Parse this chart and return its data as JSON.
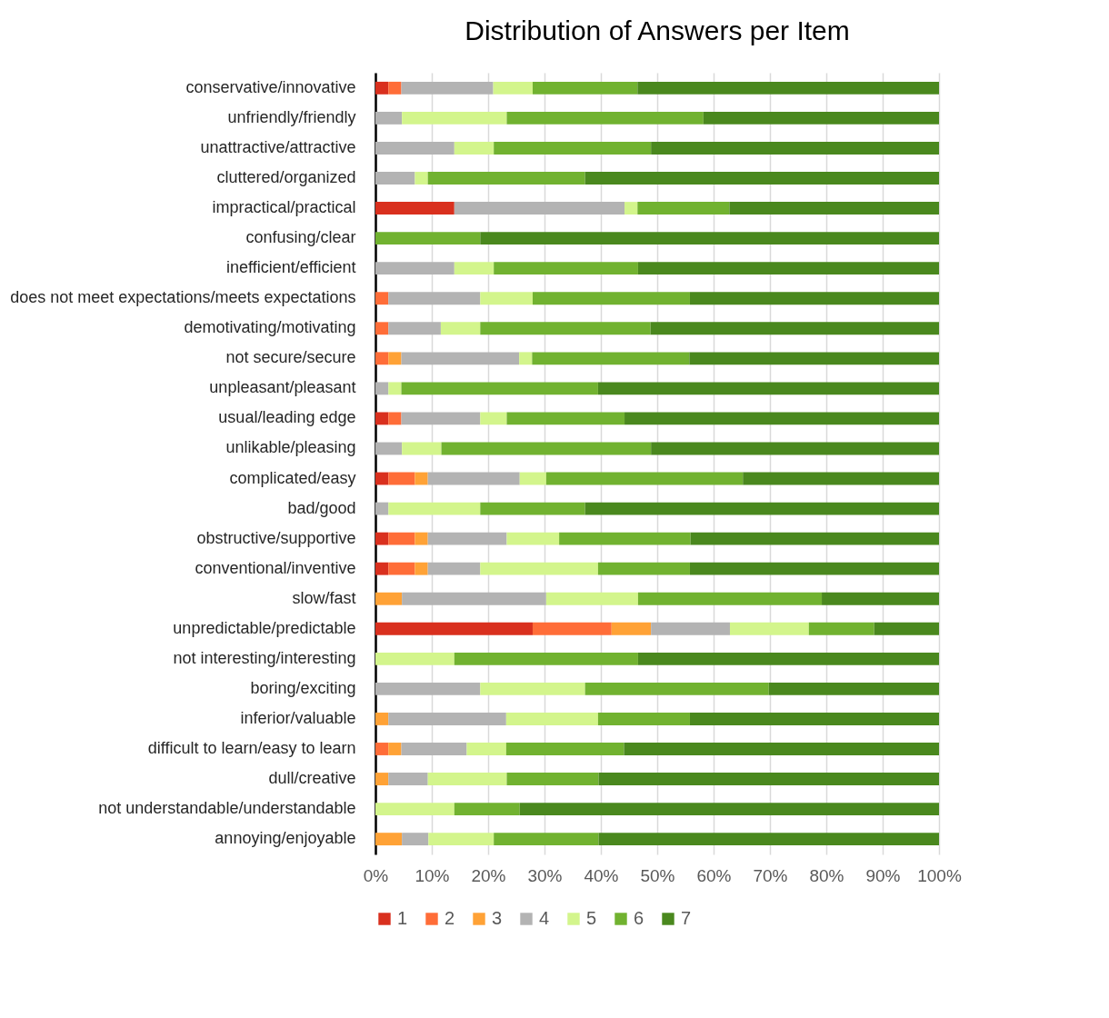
{
  "chart_data": {
    "type": "bar",
    "orientation": "horizontal",
    "stacked": true,
    "title": "Distribution of Answers per Item",
    "categories": [
      "conservative/innovative",
      "unfriendly/friendly",
      "unattractive/attractive",
      "cluttered/organized",
      "impractical/practical",
      "confusing/clear",
      "inefficient/efficient",
      "does not meet expectations/meets expectations",
      "demotivating/motivating",
      "not secure/secure",
      "unpleasant/pleasant",
      "usual/leading edge",
      "unlikable/pleasing",
      "complicated/easy",
      "bad/good",
      "obstructive/supportive",
      "conventional/inventive",
      "slow/fast",
      "unpredictable/predictable",
      "not interesting/interesting",
      "boring/exciting",
      "inferior/valuable",
      "difficult to learn/easy to learn",
      "dull/creative",
      "not understandable/understandable",
      "annoying/enjoyable"
    ],
    "series": [
      {
        "name": "1",
        "color": "#d9301e",
        "values": [
          2.3,
          0,
          0,
          0,
          14.0,
          0,
          0,
          0,
          0,
          0,
          0,
          2.3,
          0,
          2.3,
          0,
          2.3,
          2.3,
          0,
          27.9,
          0,
          0,
          0,
          0,
          0,
          0,
          0
        ]
      },
      {
        "name": "2",
        "color": "#ff6d38",
        "values": [
          2.3,
          0,
          0,
          0,
          0,
          0,
          0,
          2.3,
          2.3,
          2.3,
          0,
          2.3,
          0,
          4.7,
          0,
          4.7,
          4.7,
          0,
          14.0,
          0,
          0,
          0,
          2.3,
          0,
          0,
          0
        ]
      },
      {
        "name": "3",
        "color": "#ffa236",
        "values": [
          0,
          0,
          0,
          0,
          0,
          0,
          0,
          0,
          0,
          2.3,
          0,
          0,
          0,
          2.3,
          0,
          2.3,
          2.3,
          4.7,
          7.0,
          0,
          0,
          2.3,
          2.3,
          2.3,
          0,
          4.7
        ]
      },
      {
        "name": "4",
        "color": "#b3b3b3",
        "values": [
          16.3,
          4.7,
          14.0,
          7.0,
          30.2,
          0,
          14.0,
          16.3,
          9.3,
          20.9,
          2.3,
          14.0,
          4.7,
          16.3,
          2.3,
          14.0,
          9.3,
          25.6,
          14.0,
          0,
          18.6,
          20.9,
          11.6,
          7.0,
          0,
          4.7
        ]
      },
      {
        "name": "5",
        "color": "#d3f58c",
        "values": [
          7.0,
          18.6,
          7.0,
          2.3,
          2.3,
          0,
          7.0,
          9.3,
          7.0,
          2.3,
          2.3,
          4.7,
          7.0,
          4.7,
          16.3,
          9.3,
          20.9,
          16.3,
          14.0,
          14.0,
          18.6,
          16.3,
          7.0,
          14.0,
          14.0,
          11.6
        ]
      },
      {
        "name": "6",
        "color": "#71b230",
        "values": [
          18.6,
          34.9,
          27.9,
          27.9,
          16.3,
          18.6,
          25.6,
          27.9,
          30.2,
          27.9,
          34.9,
          20.9,
          37.2,
          34.9,
          18.6,
          23.3,
          16.3,
          32.6,
          11.6,
          32.6,
          32.6,
          16.3,
          20.9,
          16.3,
          11.6,
          18.6
        ]
      },
      {
        "name": "7",
        "color": "#4a881e",
        "values": [
          53.5,
          41.8,
          51.1,
          62.8,
          37.2,
          81.4,
          53.4,
          44.2,
          51.2,
          44.3,
          60.5,
          55.8,
          51.1,
          34.8,
          62.8,
          44.1,
          44.2,
          20.8,
          11.5,
          53.4,
          30.2,
          44.2,
          55.9,
          60.4,
          74.4,
          60.4
        ]
      }
    ],
    "xlim": [
      0,
      100
    ],
    "xticks": [
      {
        "value": 0,
        "label": "0%"
      },
      {
        "value": 10,
        "label": "10%"
      },
      {
        "value": 20,
        "label": "20%"
      },
      {
        "value": 30,
        "label": "30%"
      },
      {
        "value": 40,
        "label": "40%"
      },
      {
        "value": 50,
        "label": "50%"
      },
      {
        "value": 60,
        "label": "60%"
      },
      {
        "value": 70,
        "label": "70%"
      },
      {
        "value": 80,
        "label": "80%"
      },
      {
        "value": 90,
        "label": "90%"
      },
      {
        "value": 100,
        "label": "100%"
      }
    ],
    "grid": "x",
    "legend": "bottom"
  }
}
